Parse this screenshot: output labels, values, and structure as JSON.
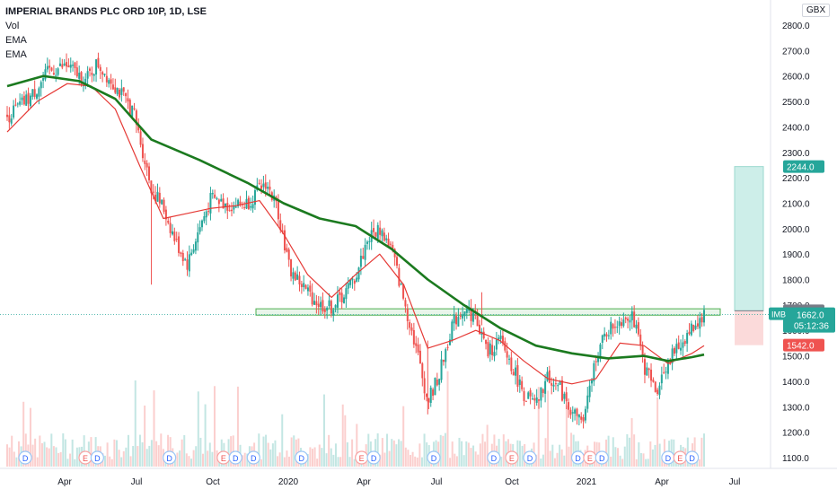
{
  "header": {
    "title": "IMPERIAL BRANDS PLC ORD 10P, 1D, LSE",
    "indicators": [
      "Vol",
      "EMA",
      "EMA"
    ]
  },
  "currency": "GBX",
  "symbol": "IMB",
  "price_labels": {
    "target": "2244.0",
    "entry": "1677.0",
    "current": "1662.0",
    "countdown": "05:12:36",
    "stop": "1542.0"
  },
  "colors": {
    "up": "#26a69a",
    "down": "#ef5350",
    "ema_fast": "#e53935",
    "ema_slow": "#1b7a1f",
    "zone": "#4caf50",
    "target_fill": "#cdeee9",
    "stop_fill": "#fbdada"
  },
  "chart_data": {
    "type": "candlestick",
    "title": "IMPERIAL BRANDS PLC ORD 10P, 1D, LSE",
    "y_ticks": [
      "2800.0",
      "2700.0",
      "2600.0",
      "2500.0",
      "2400.0",
      "2300.0",
      "2200.0",
      "2100.0",
      "2000.0",
      "1900.0",
      "1800.0",
      "1700.0",
      "1600.0",
      "1500.0",
      "1400.0",
      "1300.0",
      "1200.0",
      "1100.0"
    ],
    "ylim": [
      1060,
      2850
    ],
    "x_ticks": [
      "Apr",
      "Jul",
      "Oct",
      "2020",
      "Apr",
      "Jul",
      "Oct",
      "2021",
      "Apr",
      "Jul"
    ],
    "price_path": [
      {
        "t": 0,
        "p": 2440
      },
      {
        "t": 4,
        "p": 2520
      },
      {
        "t": 7,
        "p": 2620
      },
      {
        "t": 10,
        "p": 2640
      },
      {
        "t": 13,
        "p": 2580
      },
      {
        "t": 15,
        "p": 2650
      },
      {
        "t": 18,
        "p": 2560
      },
      {
        "t": 21,
        "p": 2460
      },
      {
        "t": 24,
        "p": 2160
      },
      {
        "t": 26,
        "p": 2080
      },
      {
        "t": 28,
        "p": 1950
      },
      {
        "t": 30,
        "p": 1860
      },
      {
        "t": 32,
        "p": 2000
      },
      {
        "t": 34,
        "p": 2120
      },
      {
        "t": 37,
        "p": 2090
      },
      {
        "t": 40,
        "p": 2100
      },
      {
        "t": 43,
        "p": 2180
      },
      {
        "t": 45,
        "p": 2080
      },
      {
        "t": 47,
        "p": 1840
      },
      {
        "t": 50,
        "p": 1750
      },
      {
        "t": 52,
        "p": 1700
      },
      {
        "t": 54,
        "p": 1690
      },
      {
        "t": 56,
        "p": 1740
      },
      {
        "t": 58,
        "p": 1810
      },
      {
        "t": 60,
        "p": 1960
      },
      {
        "t": 62,
        "p": 2000
      },
      {
        "t": 64,
        "p": 1920
      },
      {
        "t": 66,
        "p": 1720
      },
      {
        "t": 68,
        "p": 1540
      },
      {
        "t": 70,
        "p": 1320
      },
      {
        "t": 72,
        "p": 1430
      },
      {
        "t": 74,
        "p": 1620
      },
      {
        "t": 76,
        "p": 1690
      },
      {
        "t": 78,
        "p": 1650
      },
      {
        "t": 80,
        "p": 1510
      },
      {
        "t": 82,
        "p": 1560
      },
      {
        "t": 84,
        "p": 1460
      },
      {
        "t": 86,
        "p": 1350
      },
      {
        "t": 88,
        "p": 1300
      },
      {
        "t": 90,
        "p": 1420
      },
      {
        "t": 92,
        "p": 1370
      },
      {
        "t": 94,
        "p": 1280
      },
      {
        "t": 96,
        "p": 1240
      },
      {
        "t": 98,
        "p": 1500
      },
      {
        "t": 100,
        "p": 1600
      },
      {
        "t": 102,
        "p": 1640
      },
      {
        "t": 104,
        "p": 1670
      },
      {
        "t": 106,
        "p": 1460
      },
      {
        "t": 108,
        "p": 1360
      },
      {
        "t": 110,
        "p": 1480
      },
      {
        "t": 112,
        "p": 1540
      },
      {
        "t": 114,
        "p": 1610
      },
      {
        "t": 116,
        "p": 1662
      }
    ],
    "ema_fast": [
      {
        "t": 0,
        "p": 2380
      },
      {
        "t": 5,
        "p": 2500
      },
      {
        "t": 10,
        "p": 2570
      },
      {
        "t": 14,
        "p": 2560
      },
      {
        "t": 18,
        "p": 2470
      },
      {
        "t": 22,
        "p": 2250
      },
      {
        "t": 26,
        "p": 2040
      },
      {
        "t": 30,
        "p": 2060
      },
      {
        "t": 34,
        "p": 2080
      },
      {
        "t": 38,
        "p": 2090
      },
      {
        "t": 42,
        "p": 2110
      },
      {
        "t": 46,
        "p": 1980
      },
      {
        "t": 50,
        "p": 1820
      },
      {
        "t": 54,
        "p": 1730
      },
      {
        "t": 58,
        "p": 1820
      },
      {
        "t": 62,
        "p": 1900
      },
      {
        "t": 66,
        "p": 1780
      },
      {
        "t": 70,
        "p": 1530
      },
      {
        "t": 74,
        "p": 1560
      },
      {
        "t": 78,
        "p": 1600
      },
      {
        "t": 82,
        "p": 1560
      },
      {
        "t": 86,
        "p": 1480
      },
      {
        "t": 90,
        "p": 1410
      },
      {
        "t": 94,
        "p": 1390
      },
      {
        "t": 98,
        "p": 1410
      },
      {
        "t": 102,
        "p": 1550
      },
      {
        "t": 106,
        "p": 1540
      },
      {
        "t": 110,
        "p": 1470
      },
      {
        "t": 114,
        "p": 1510
      },
      {
        "t": 116,
        "p": 1540
      }
    ],
    "ema_slow": [
      {
        "t": 0,
        "p": 2560
      },
      {
        "t": 6,
        "p": 2600
      },
      {
        "t": 12,
        "p": 2580
      },
      {
        "t": 18,
        "p": 2510
      },
      {
        "t": 24,
        "p": 2350
      },
      {
        "t": 32,
        "p": 2270
      },
      {
        "t": 40,
        "p": 2180
      },
      {
        "t": 46,
        "p": 2100
      },
      {
        "t": 52,
        "p": 2040
      },
      {
        "t": 58,
        "p": 2010
      },
      {
        "t": 64,
        "p": 1920
      },
      {
        "t": 70,
        "p": 1800
      },
      {
        "t": 76,
        "p": 1700
      },
      {
        "t": 82,
        "p": 1610
      },
      {
        "t": 88,
        "p": 1540
      },
      {
        "t": 94,
        "p": 1510
      },
      {
        "t": 100,
        "p": 1490
      },
      {
        "t": 106,
        "p": 1500
      },
      {
        "t": 110,
        "p": 1480
      },
      {
        "t": 114,
        "p": 1495
      },
      {
        "t": 116,
        "p": 1505
      }
    ],
    "support_zone": [
      1660,
      1685
    ],
    "position": {
      "target": 2244,
      "entry": 1677,
      "stop": 1542
    }
  },
  "events": [
    {
      "t": 3,
      "label": "D"
    },
    {
      "t": 13,
      "label": "E"
    },
    {
      "t": 15,
      "label": "D"
    },
    {
      "t": 27,
      "label": "D"
    },
    {
      "t": 36,
      "label": "E"
    },
    {
      "t": 38,
      "label": "D"
    },
    {
      "t": 41,
      "label": "D"
    },
    {
      "t": 49,
      "label": "D"
    },
    {
      "t": 59,
      "label": "E"
    },
    {
      "t": 61,
      "label": "D"
    },
    {
      "t": 71,
      "label": "D"
    },
    {
      "t": 81,
      "label": "D"
    },
    {
      "t": 84,
      "label": "E"
    },
    {
      "t": 87,
      "label": "D"
    },
    {
      "t": 95,
      "label": "D"
    },
    {
      "t": 97,
      "label": "E"
    },
    {
      "t": 99,
      "label": "D"
    },
    {
      "t": 110,
      "label": "D"
    },
    {
      "t": 112,
      "label": "E"
    },
    {
      "t": 114,
      "label": "D"
    }
  ]
}
